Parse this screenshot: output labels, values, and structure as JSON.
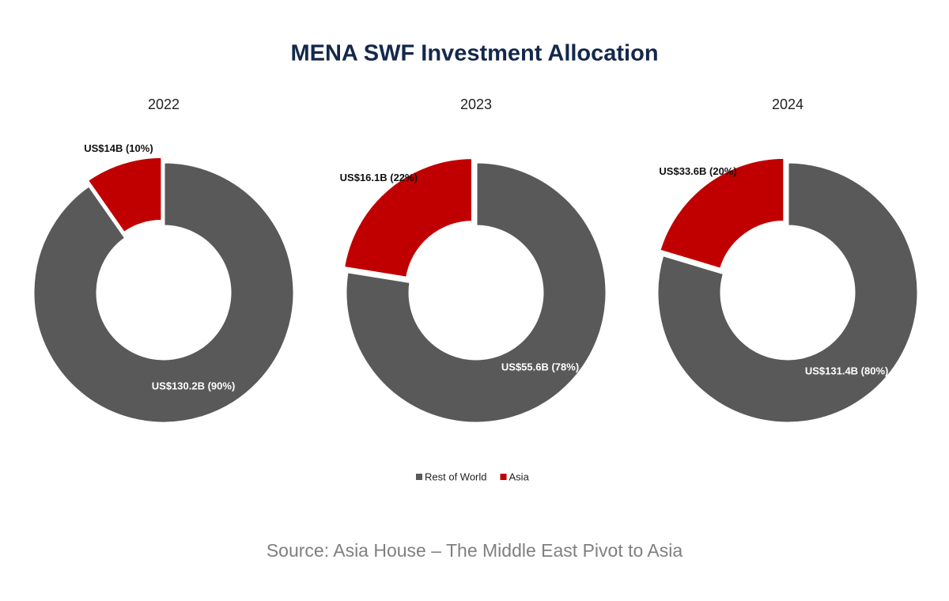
{
  "title": "MENA SWF Investment Allocation",
  "source": "Source: Asia House – The Middle East Pivot to Asia",
  "chart_data": [
    {
      "type": "donut",
      "title": "2022",
      "categories": [
        "Rest of World",
        "Asia"
      ],
      "colors": [
        "#595959",
        "#c00000"
      ],
      "values": [
        130.2,
        14
      ],
      "value_labels": [
        "US$130.2B (90%)",
        "US$14B (10%)"
      ]
    },
    {
      "type": "donut",
      "title": "2023",
      "categories": [
        "Rest of World",
        "Asia"
      ],
      "colors": [
        "#595959",
        "#c00000"
      ],
      "values": [
        55.6,
        16.1
      ],
      "value_labels": [
        "US$55.6B (78%)",
        "US$16.1B (22%)"
      ]
    },
    {
      "type": "donut",
      "title": "2024",
      "categories": [
        "Rest of World",
        "Asia"
      ],
      "colors": [
        "#595959",
        "#c00000"
      ],
      "values": [
        131.4,
        33.6
      ],
      "value_labels": [
        "US$131.4B (80%)",
        "US$33.6B (20%)"
      ]
    }
  ]
}
